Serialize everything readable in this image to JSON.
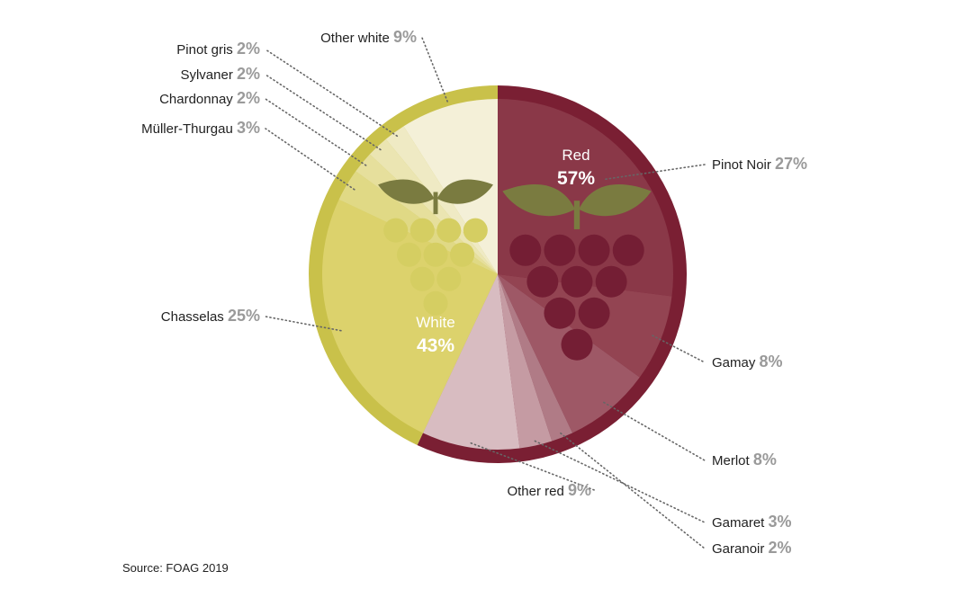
{
  "chart_data": {
    "type": "pie",
    "groups": [
      {
        "name": "Red",
        "value": "57%",
        "color": "#7a1f33"
      },
      {
        "name": "White",
        "value": "43%",
        "color": "#c9c14a"
      }
    ],
    "slices": [
      {
        "name": "Pinot Noir",
        "value": 27,
        "pct_label": "27%",
        "group": "Red",
        "color": "#8a3848"
      },
      {
        "name": "Gamay",
        "value": 8,
        "pct_label": "8%",
        "group": "Red",
        "color": "#934452"
      },
      {
        "name": "Merlot",
        "value": 8,
        "pct_label": "8%",
        "group": "Red",
        "color": "#9e5866"
      },
      {
        "name": "Garanoir",
        "value": 2,
        "pct_label": "2%",
        "group": "Red",
        "color": "#b07b86"
      },
      {
        "name": "Gamaret",
        "value": 3,
        "pct_label": "3%",
        "group": "Red",
        "color": "#c59ba3"
      },
      {
        "name": "Other red",
        "value": 9,
        "pct_label": "9%",
        "group": "Red",
        "color": "#d8bcc1"
      },
      {
        "name": "Chasselas",
        "value": 25,
        "pct_label": "25%",
        "group": "White",
        "color": "#dcd26c"
      },
      {
        "name": "Müller-Thurgau",
        "value": 3,
        "pct_label": "3%",
        "group": "White",
        "color": "#e0d985"
      },
      {
        "name": "Chardonnay",
        "value": 2,
        "pct_label": "2%",
        "group": "White",
        "color": "#e6df9c"
      },
      {
        "name": "Sylvaner",
        "value": 2,
        "pct_label": "2%",
        "group": "White",
        "color": "#ebe5b2"
      },
      {
        "name": "Pinot gris",
        "value": 2,
        "pct_label": "2%",
        "group": "White",
        "color": "#efeac4"
      },
      {
        "name": "Other white",
        "value": 9,
        "pct_label": "9%",
        "group": "White",
        "color": "#f4f0d8"
      }
    ],
    "legend": "none",
    "grid": false
  },
  "icons": {
    "red": "red-grape-icon",
    "white": "white-grape-icon"
  },
  "colors": {
    "red_grape": "#741e34",
    "white_grape": "#d5ce62",
    "leaf": "#7a7b40",
    "leader": "#666666"
  },
  "source": "Source: FOAG 2019"
}
